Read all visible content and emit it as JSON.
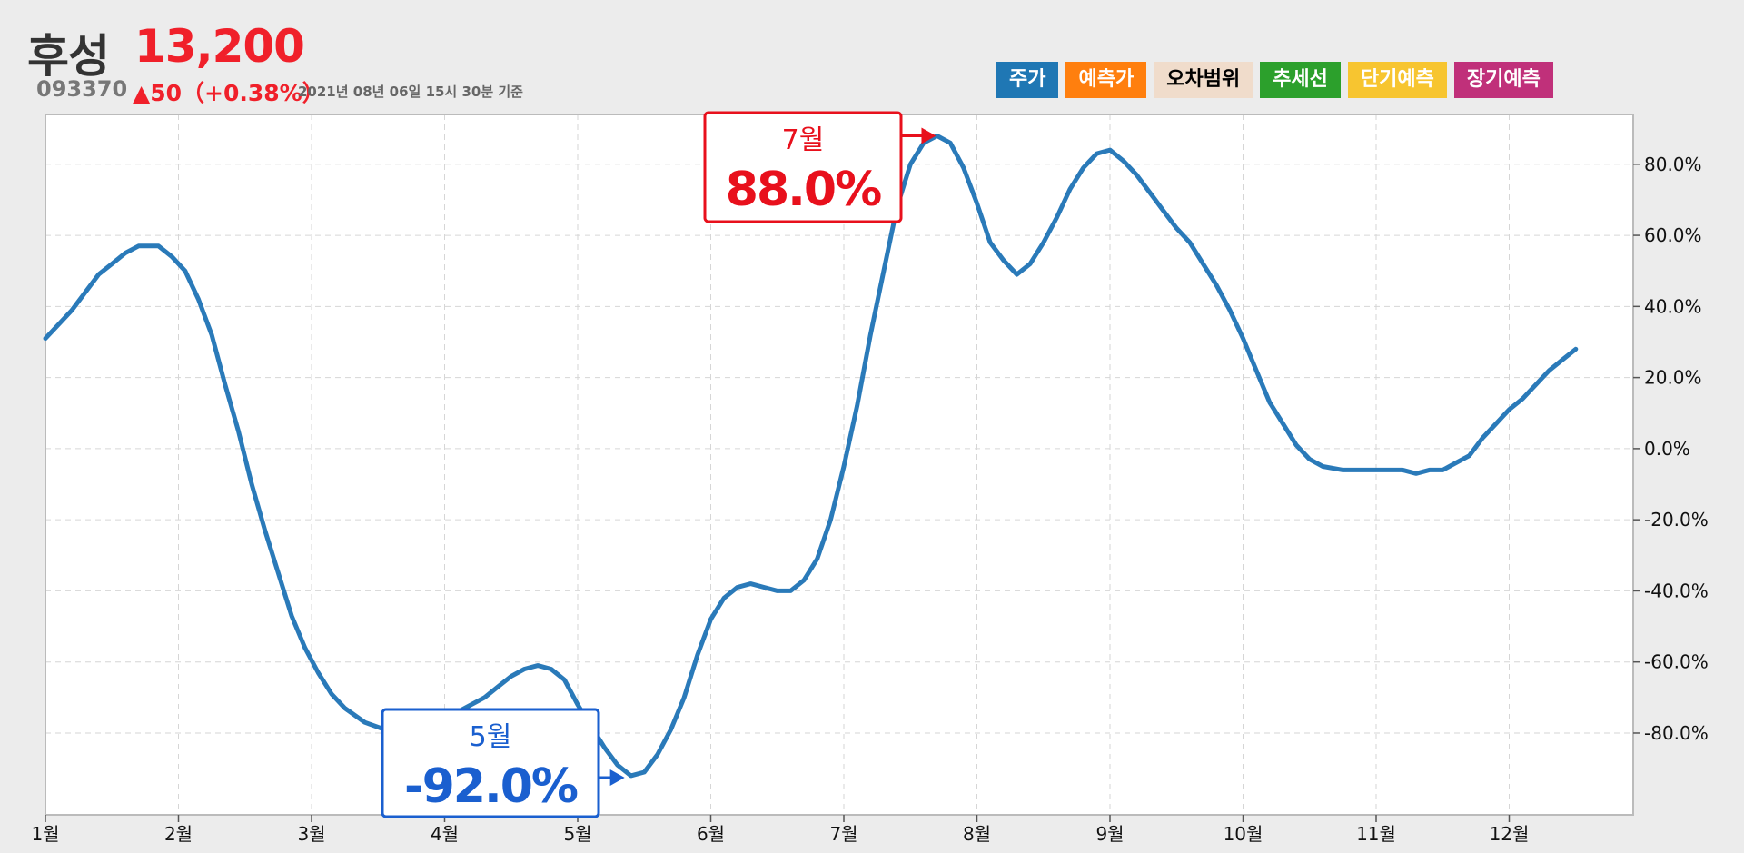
{
  "header": {
    "name": "후성",
    "price": "13,200",
    "code": "093370",
    "change": "▲50（+0.38%）",
    "asof": "2021년 08년 06일 15시 30분 기준"
  },
  "legend": [
    {
      "label": "주가",
      "bg": "#1f77b4",
      "fg": "#ffffff"
    },
    {
      "label": "예측가",
      "bg": "#ff7f0e",
      "fg": "#ffffff"
    },
    {
      "label": "오차범위",
      "bg": "#f0dccb",
      "fg": "#000000"
    },
    {
      "label": "추세선",
      "bg": "#2ca02c",
      "fg": "#ffffff"
    },
    {
      "label": "단기예측",
      "bg": "#f7c530",
      "fg": "#ffffff"
    },
    {
      "label": "장기예측",
      "bg": "#c0307a",
      "fg": "#ffffff"
    }
  ],
  "chart_data": {
    "type": "line",
    "x_ticks": [
      "1월",
      "2월",
      "3월",
      "4월",
      "5월",
      "6월",
      "7월",
      "8월",
      "9월",
      "10월",
      "11월",
      "12월"
    ],
    "y_ticks": [
      "80.0%",
      "60.0%",
      "40.0%",
      "20.0%",
      "0.0%",
      "-20.0%",
      "-40.0%",
      "-60.0%",
      "-80.0%"
    ],
    "y_tick_values": [
      80,
      60,
      40,
      20,
      0,
      -20,
      -40,
      -60,
      -80
    ],
    "ylim": [
      -103,
      94
    ],
    "xlim": [
      0,
      11.95
    ],
    "grid": true,
    "line_color": "#2a7ab9",
    "series": [
      {
        "points": [
          [
            0.0,
            31
          ],
          [
            0.1,
            35
          ],
          [
            0.2,
            39
          ],
          [
            0.3,
            44
          ],
          [
            0.4,
            49
          ],
          [
            0.5,
            52
          ],
          [
            0.6,
            55
          ],
          [
            0.7,
            57
          ],
          [
            0.85,
            57
          ],
          [
            0.95,
            54
          ],
          [
            1.05,
            50
          ],
          [
            1.15,
            42
          ],
          [
            1.25,
            32
          ],
          [
            1.35,
            18
          ],
          [
            1.45,
            5
          ],
          [
            1.55,
            -10
          ],
          [
            1.65,
            -23
          ],
          [
            1.75,
            -35
          ],
          [
            1.85,
            -47
          ],
          [
            1.95,
            -56
          ],
          [
            2.05,
            -63
          ],
          [
            2.15,
            -69
          ],
          [
            2.25,
            -73
          ],
          [
            2.4,
            -77
          ],
          [
            2.55,
            -79
          ],
          [
            2.7,
            -79
          ],
          [
            2.85,
            -78
          ],
          [
            3.0,
            -76
          ],
          [
            3.1,
            -74
          ],
          [
            3.2,
            -72
          ],
          [
            3.3,
            -70
          ],
          [
            3.4,
            -67
          ],
          [
            3.5,
            -64
          ],
          [
            3.6,
            -62
          ],
          [
            3.7,
            -61
          ],
          [
            3.8,
            -62
          ],
          [
            3.9,
            -65
          ],
          [
            4.0,
            -72
          ],
          [
            4.1,
            -78
          ],
          [
            4.2,
            -84
          ],
          [
            4.3,
            -89
          ],
          [
            4.4,
            -92
          ],
          [
            4.5,
            -91
          ],
          [
            4.6,
            -86
          ],
          [
            4.7,
            -79
          ],
          [
            4.8,
            -70
          ],
          [
            4.9,
            -58
          ],
          [
            5.0,
            -48
          ],
          [
            5.1,
            -42
          ],
          [
            5.2,
            -39
          ],
          [
            5.3,
            -38
          ],
          [
            5.4,
            -39
          ],
          [
            5.5,
            -40
          ],
          [
            5.6,
            -40
          ],
          [
            5.7,
            -37
          ],
          [
            5.8,
            -31
          ],
          [
            5.9,
            -20
          ],
          [
            6.0,
            -5
          ],
          [
            6.1,
            12
          ],
          [
            6.2,
            32
          ],
          [
            6.3,
            50
          ],
          [
            6.4,
            68
          ],
          [
            6.5,
            80
          ],
          [
            6.6,
            86
          ],
          [
            6.7,
            88
          ],
          [
            6.8,
            86
          ],
          [
            6.9,
            79
          ],
          [
            7.0,
            69
          ],
          [
            7.1,
            58
          ],
          [
            7.2,
            53
          ],
          [
            7.3,
            49
          ],
          [
            7.4,
            52
          ],
          [
            7.5,
            58
          ],
          [
            7.6,
            65
          ],
          [
            7.7,
            73
          ],
          [
            7.8,
            79
          ],
          [
            7.9,
            83
          ],
          [
            8.0,
            84
          ],
          [
            8.1,
            81
          ],
          [
            8.2,
            77
          ],
          [
            8.3,
            72
          ],
          [
            8.4,
            67
          ],
          [
            8.5,
            62
          ],
          [
            8.6,
            58
          ],
          [
            8.7,
            52
          ],
          [
            8.8,
            46
          ],
          [
            8.9,
            39
          ],
          [
            9.0,
            31
          ],
          [
            9.1,
            22
          ],
          [
            9.2,
            13
          ],
          [
            9.3,
            7
          ],
          [
            9.4,
            1
          ],
          [
            9.5,
            -3
          ],
          [
            9.6,
            -5
          ],
          [
            9.75,
            -6
          ],
          [
            9.9,
            -6
          ],
          [
            10.05,
            -6
          ],
          [
            10.2,
            -6
          ],
          [
            10.3,
            -7
          ],
          [
            10.4,
            -6
          ],
          [
            10.5,
            -6
          ],
          [
            10.6,
            -4
          ],
          [
            10.7,
            -2
          ],
          [
            10.8,
            3
          ],
          [
            10.9,
            7
          ],
          [
            11.0,
            11
          ],
          [
            11.1,
            14
          ],
          [
            11.2,
            18
          ],
          [
            11.3,
            22
          ],
          [
            11.4,
            25
          ],
          [
            11.5,
            28
          ]
        ]
      }
    ],
    "annotations": [
      {
        "label": "7월",
        "value": "88.0%",
        "color": "#e8101c",
        "at": [
          6.72,
          88
        ]
      },
      {
        "label": "5월",
        "value": "-92.0%",
        "color": "#1a5fcf",
        "at": [
          4.38,
          -92
        ]
      }
    ]
  }
}
